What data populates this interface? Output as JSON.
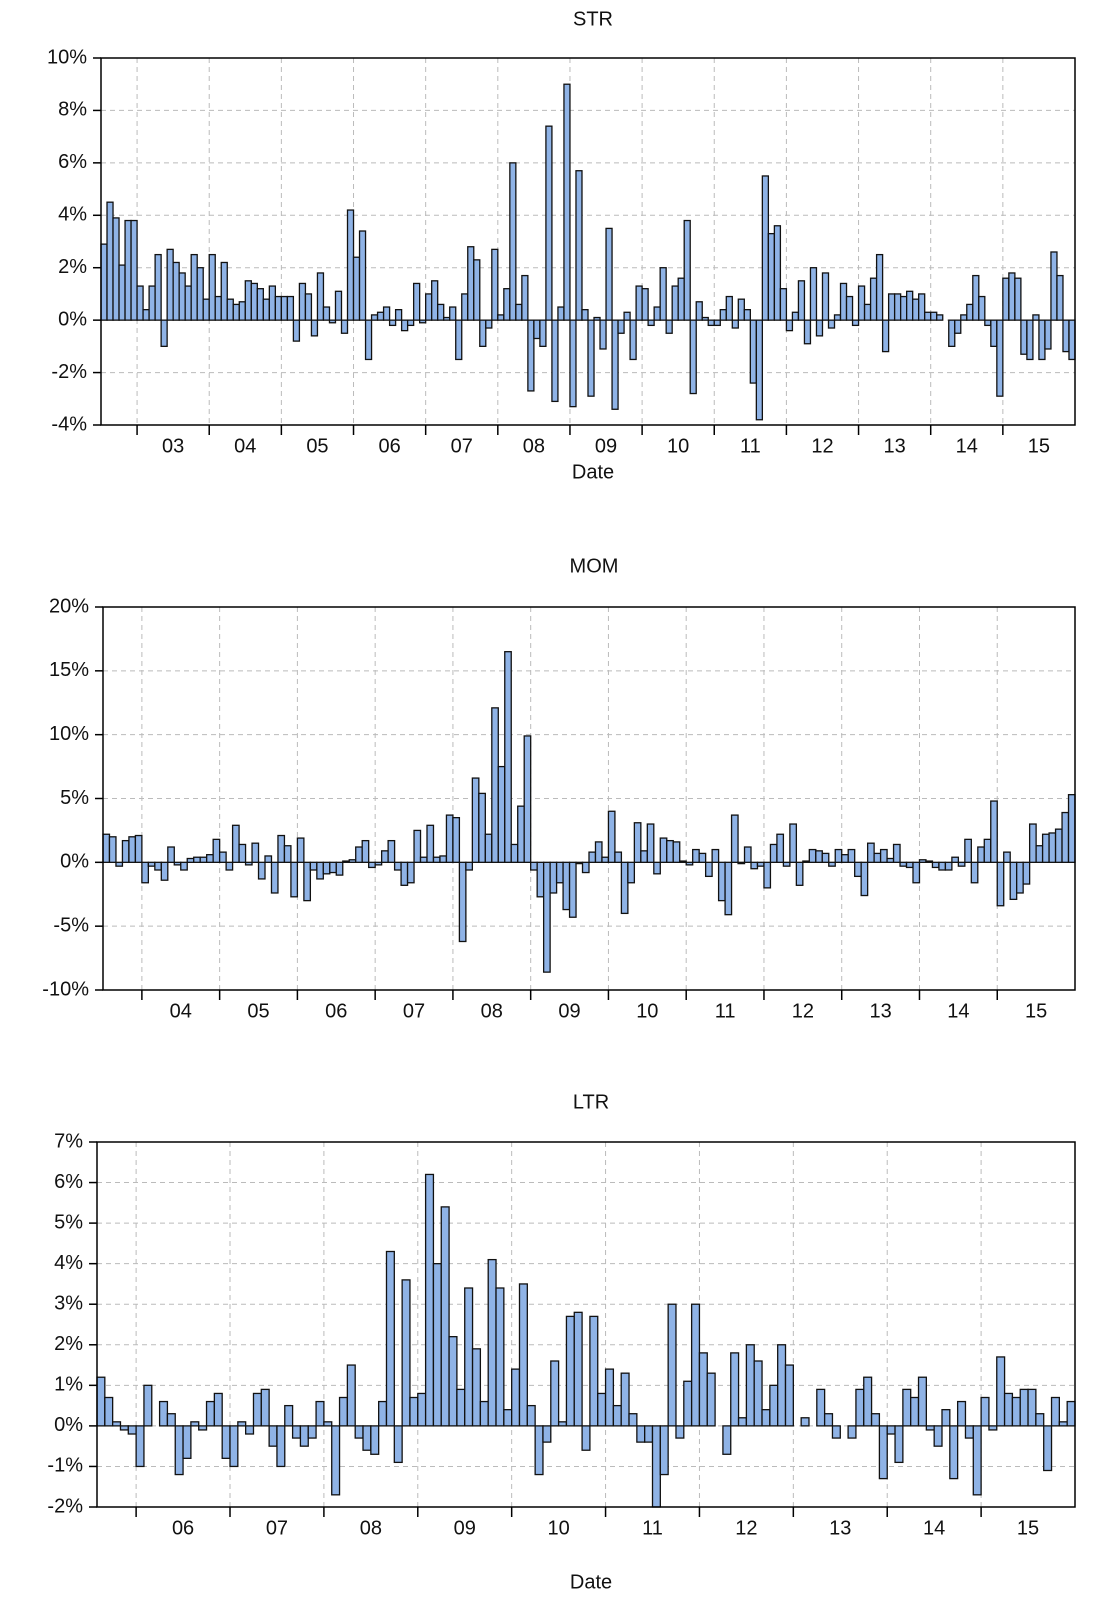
{
  "chart_data": [
    {
      "type": "bar",
      "title": "STR",
      "x_label": "Date",
      "color": "#8fb3e6",
      "grid": true,
      "ylim": [
        -4,
        10
      ],
      "yticks": [
        {
          "value": -4,
          "label": "-4%"
        },
        {
          "value": -2,
          "label": "-2%"
        },
        {
          "value": 0,
          "label": "0%"
        },
        {
          "value": 2,
          "label": "2%"
        },
        {
          "value": 4,
          "label": "4%"
        },
        {
          "value": 6,
          "label": "6%"
        },
        {
          "value": 8,
          "label": "8%"
        },
        {
          "value": 10,
          "label": "10%"
        }
      ],
      "categories": [
        null,
        null,
        null,
        null,
        null,
        null,
        null,
        null,
        null,
        null,
        null,
        null,
        "03",
        null,
        null,
        null,
        null,
        null,
        null,
        null,
        null,
        null,
        null,
        null,
        "04",
        null,
        null,
        null,
        null,
        null,
        null,
        null,
        null,
        null,
        null,
        null,
        "05",
        null,
        null,
        null,
        null,
        null,
        null,
        null,
        null,
        null,
        null,
        null,
        "06",
        null,
        null,
        null,
        null,
        null,
        null,
        null,
        null,
        null,
        null,
        null,
        "07",
        null,
        null,
        null,
        null,
        null,
        null,
        null,
        null,
        null,
        null,
        null,
        "08",
        null,
        null,
        null,
        null,
        null,
        null,
        null,
        null,
        null,
        null,
        null,
        "09",
        null,
        null,
        null,
        null,
        null,
        null,
        null,
        null,
        null,
        null,
        null,
        "10",
        null,
        null,
        null,
        null,
        null,
        null,
        null,
        null,
        null,
        null,
        null,
        "11",
        null,
        null,
        null,
        null,
        null,
        null,
        null,
        null,
        null,
        null,
        null,
        "12",
        null,
        null,
        null,
        null,
        null,
        null,
        null,
        null,
        null,
        null,
        null,
        "13",
        null,
        null,
        null,
        null,
        null,
        null,
        null,
        null,
        null,
        null,
        null,
        "14",
        null,
        null,
        null,
        null,
        null,
        null,
        null,
        null,
        null,
        null,
        null,
        "15",
        null,
        null,
        null,
        null,
        null
      ],
      "values": [
        2.9,
        4.5,
        3.9,
        2.1,
        3.8,
        3.8,
        1.3,
        0.4,
        1.3,
        2.5,
        -1.0,
        2.7,
        2.2,
        1.8,
        1.3,
        2.5,
        2.0,
        0.8,
        2.5,
        0.9,
        2.2,
        0.8,
        0.6,
        0.7,
        1.5,
        1.4,
        1.2,
        0.8,
        1.3,
        0.9,
        0.9,
        0.9,
        -0.8,
        1.4,
        1.0,
        -0.6,
        1.8,
        0.5,
        -0.1,
        1.1,
        -0.5,
        4.2,
        2.4,
        3.4,
        -1.5,
        0.2,
        0.3,
        0.5,
        -0.2,
        0.4,
        -0.4,
        -0.2,
        1.4,
        -0.1,
        1.0,
        1.5,
        0.6,
        0.1,
        0.5,
        -1.5,
        1.0,
        2.8,
        2.3,
        -1.0,
        -0.3,
        2.7,
        0.2,
        1.2,
        6.0,
        0.6,
        1.7,
        -2.7,
        -0.7,
        -1.0,
        7.4,
        -3.1,
        0.5,
        9.0,
        -3.3,
        5.7,
        0.4,
        -2.9,
        0.1,
        -1.1,
        3.5,
        -3.4,
        -0.5,
        0.3,
        -1.5,
        1.3,
        1.2,
        -0.2,
        0.5,
        2.0,
        -0.5,
        1.3,
        1.6,
        3.8,
        -2.8,
        0.7,
        0.1,
        -0.2,
        -0.2,
        0.4,
        0.9,
        -0.3,
        0.8,
        0.4,
        -2.4,
        -3.8,
        5.5,
        3.3,
        3.6,
        1.2,
        -0.4,
        0.3,
        1.5,
        -0.9,
        2.0,
        -0.6,
        1.8,
        -0.3,
        0.2,
        1.4,
        0.9,
        -0.2,
        1.3,
        0.6,
        1.6,
        2.5,
        -1.2,
        1.0,
        1.0,
        0.9,
        1.1,
        0.8,
        1.0,
        0.3,
        0.3,
        0.2,
        0.0,
        -1.0,
        -0.5,
        0.2,
        0.6,
        1.7,
        0.9,
        -0.2,
        -1.0,
        -2.9,
        1.6,
        1.8,
        1.6,
        -1.3,
        -1.5,
        0.2,
        -1.5,
        -1.1,
        2.6,
        1.7,
        -1.2,
        -1.5
      ]
    },
    {
      "type": "bar",
      "title": "MOM",
      "color": "#8fb3e6",
      "grid": true,
      "ylim": [
        -10,
        20
      ],
      "yticks": [
        {
          "value": -10,
          "label": "-10%"
        },
        {
          "value": -5,
          "label": "-5%"
        },
        {
          "value": 0,
          "label": "0%"
        },
        {
          "value": 5,
          "label": "5%"
        },
        {
          "value": 10,
          "label": "10%"
        },
        {
          "value": 15,
          "label": "15%"
        },
        {
          "value": 20,
          "label": "20%"
        }
      ],
      "categories": [
        null,
        null,
        null,
        null,
        null,
        null,
        null,
        null,
        null,
        null,
        null,
        null,
        "04",
        null,
        null,
        null,
        null,
        null,
        null,
        null,
        null,
        null,
        null,
        null,
        "05",
        null,
        null,
        null,
        null,
        null,
        null,
        null,
        null,
        null,
        null,
        null,
        "06",
        null,
        null,
        null,
        null,
        null,
        null,
        null,
        null,
        null,
        null,
        null,
        "07",
        null,
        null,
        null,
        null,
        null,
        null,
        null,
        null,
        null,
        null,
        null,
        "08",
        null,
        null,
        null,
        null,
        null,
        null,
        null,
        null,
        null,
        null,
        null,
        "09",
        null,
        null,
        null,
        null,
        null,
        null,
        null,
        null,
        null,
        null,
        null,
        "10",
        null,
        null,
        null,
        null,
        null,
        null,
        null,
        null,
        null,
        null,
        null,
        "11",
        null,
        null,
        null,
        null,
        null,
        null,
        null,
        null,
        null,
        null,
        null,
        "12",
        null,
        null,
        null,
        null,
        null,
        null,
        null,
        null,
        null,
        null,
        null,
        "13",
        null,
        null,
        null,
        null,
        null,
        null,
        null,
        null,
        null,
        null,
        null,
        "14",
        null,
        null,
        null,
        null,
        null,
        null,
        null,
        null,
        null,
        null,
        null,
        "15",
        null,
        null,
        null,
        null,
        null
      ],
      "values": [
        2.2,
        2.0,
        -0.3,
        1.7,
        2.0,
        2.1,
        -1.6,
        -0.3,
        -0.6,
        -1.4,
        1.2,
        -0.2,
        -0.6,
        0.3,
        0.4,
        0.4,
        0.6,
        1.8,
        0.8,
        -0.6,
        2.9,
        1.4,
        -0.2,
        1.5,
        -1.3,
        0.5,
        -2.4,
        2.1,
        1.3,
        -2.7,
        1.9,
        -3.0,
        -0.6,
        -1.3,
        -0.9,
        -0.8,
        -1.0,
        0.1,
        0.2,
        1.2,
        1.7,
        -0.4,
        -0.2,
        0.9,
        1.7,
        -0.6,
        -1.8,
        -1.6,
        2.5,
        0.4,
        2.9,
        0.4,
        0.5,
        3.7,
        3.5,
        -6.2,
        -0.6,
        6.6,
        5.4,
        2.2,
        12.1,
        7.5,
        16.5,
        1.4,
        4.4,
        9.9,
        -0.6,
        -2.7,
        -8.6,
        -2.4,
        -1.6,
        -3.7,
        -4.3,
        -0.1,
        -0.8,
        0.8,
        1.6,
        0.4,
        4.0,
        0.8,
        -4.0,
        -1.6,
        3.1,
        0.9,
        3.0,
        -0.9,
        1.9,
        1.7,
        1.6,
        0.1,
        -0.2,
        1.0,
        0.7,
        -1.1,
        1.0,
        -3.0,
        -4.1,
        3.7,
        -0.1,
        1.2,
        -0.5,
        -0.3,
        -2.0,
        1.4,
        2.2,
        -0.3,
        3.0,
        -1.8,
        0.1,
        1.0,
        0.9,
        0.7,
        -0.3,
        1.0,
        0.6,
        1.0,
        -1.1,
        -2.6,
        1.5,
        0.7,
        1.0,
        0.3,
        1.4,
        -0.3,
        -0.4,
        -1.6,
        0.2,
        0.1,
        -0.4,
        -0.6,
        -0.6,
        0.4,
        -0.3,
        1.8,
        -1.6,
        1.2,
        1.8,
        4.8,
        -3.4,
        0.8,
        -2.9,
        -2.4,
        -1.7,
        3.0,
        1.3,
        2.2,
        2.3,
        2.6,
        3.9,
        5.3
      ]
    },
    {
      "type": "bar",
      "title": "LTR",
      "x_label": "Date",
      "color": "#8fb3e6",
      "grid": true,
      "ylim": [
        -2,
        7
      ],
      "yticks": [
        {
          "value": -2,
          "label": "-2%"
        },
        {
          "value": -1,
          "label": "-1%"
        },
        {
          "value": 0,
          "label": "0%"
        },
        {
          "value": 1,
          "label": "1%"
        },
        {
          "value": 2,
          "label": "2%"
        },
        {
          "value": 3,
          "label": "3%"
        },
        {
          "value": 4,
          "label": "4%"
        },
        {
          "value": 5,
          "label": "5%"
        },
        {
          "value": 6,
          "label": "6%"
        },
        {
          "value": 7,
          "label": "7%"
        }
      ],
      "categories": [
        null,
        null,
        null,
        null,
        null,
        null,
        null,
        null,
        null,
        null,
        null,
        "06",
        null,
        null,
        null,
        null,
        null,
        null,
        null,
        null,
        null,
        null,
        null,
        "07",
        null,
        null,
        null,
        null,
        null,
        null,
        null,
        null,
        null,
        null,
        null,
        "08",
        null,
        null,
        null,
        null,
        null,
        null,
        null,
        null,
        null,
        null,
        null,
        "09",
        null,
        null,
        null,
        null,
        null,
        null,
        null,
        null,
        null,
        null,
        null,
        "10",
        null,
        null,
        null,
        null,
        null,
        null,
        null,
        null,
        null,
        null,
        null,
        "11",
        null,
        null,
        null,
        null,
        null,
        null,
        null,
        null,
        null,
        null,
        null,
        "12",
        null,
        null,
        null,
        null,
        null,
        null,
        null,
        null,
        null,
        null,
        null,
        "13",
        null,
        null,
        null,
        null,
        null,
        null,
        null,
        null,
        null,
        null,
        null,
        "14",
        null,
        null,
        null,
        null,
        null,
        null,
        null,
        null,
        null,
        null,
        null,
        "15",
        null,
        null,
        null,
        null,
        null
      ],
      "values": [
        1.2,
        0.7,
        0.1,
        -0.1,
        -0.2,
        -1.0,
        1.0,
        0.0,
        0.6,
        0.3,
        -1.2,
        -0.8,
        0.1,
        -0.1,
        0.6,
        0.8,
        -0.8,
        -1.0,
        0.1,
        -0.2,
        0.8,
        0.9,
        -0.5,
        -1.0,
        0.5,
        -0.3,
        -0.5,
        -0.3,
        0.6,
        0.1,
        -1.7,
        0.7,
        1.5,
        -0.3,
        -0.6,
        -0.7,
        0.6,
        4.3,
        -0.9,
        3.6,
        0.7,
        0.8,
        6.2,
        4.0,
        5.4,
        2.2,
        0.9,
        3.4,
        1.9,
        0.6,
        4.1,
        3.4,
        0.4,
        1.4,
        3.5,
        0.5,
        -1.2,
        -0.4,
        1.6,
        0.1,
        2.7,
        2.8,
        -0.6,
        2.7,
        0.8,
        1.4,
        0.5,
        1.3,
        0.3,
        -0.4,
        -0.4,
        -2.0,
        -1.2,
        3.0,
        -0.3,
        1.1,
        3.0,
        1.8,
        1.3,
        0.0,
        -0.7,
        1.8,
        0.2,
        2.0,
        1.6,
        0.4,
        1.0,
        2.0,
        1.5,
        0.0,
        0.2,
        0.0,
        0.9,
        0.3,
        -0.3,
        0.0,
        -0.3,
        0.9,
        1.2,
        0.3,
        -1.3,
        -0.2,
        -0.9,
        0.9,
        0.7,
        1.2,
        -0.1,
        -0.5,
        0.4,
        -1.3,
        0.6,
        -0.3,
        -1.7,
        0.7,
        -0.1,
        1.7,
        0.8,
        0.7,
        0.9,
        0.9,
        0.3,
        -1.1,
        0.7,
        0.1,
        0.6
      ]
    }
  ]
}
